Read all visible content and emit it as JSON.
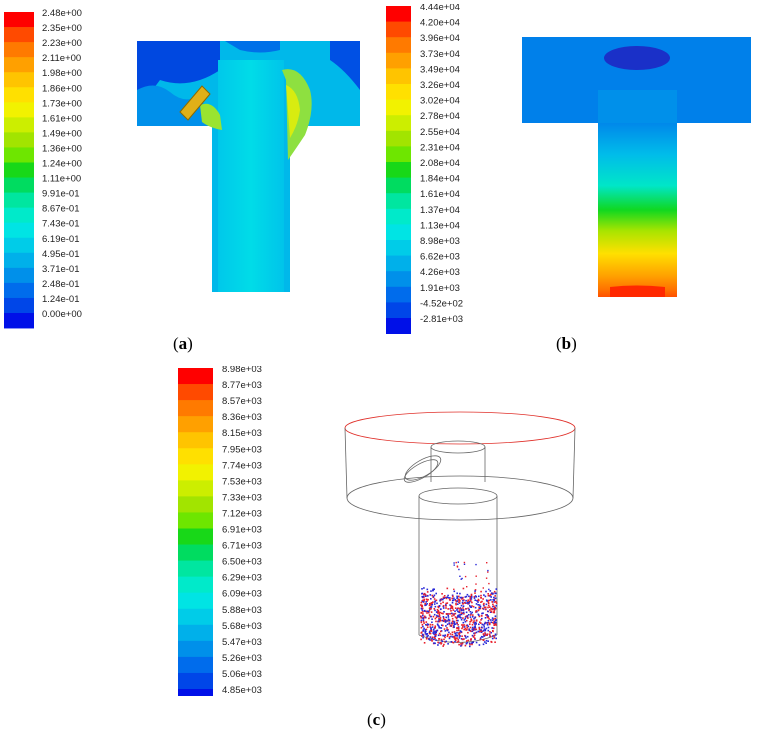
{
  "panels": [
    {
      "id": "a",
      "label": "a",
      "legend": [
        "2.48e+00",
        "2.35e+00",
        "2.23e+00",
        "2.11e+00",
        "1.98e+00",
        "1.86e+00",
        "1.73e+00",
        "1.61e+00",
        "1.49e+00",
        "1.36e+00",
        "1.24e+00",
        "1.11e+00",
        "9.91e-01",
        "8.67e-01",
        "7.43e-01",
        "6.19e-01",
        "4.95e-01",
        "3.71e-01",
        "2.48e-01",
        "1.24e-01",
        "0.00e+00"
      ]
    },
    {
      "id": "b",
      "label": "b",
      "legend": [
        "4.44e+04",
        "4.20e+04",
        "3.96e+04",
        "3.73e+04",
        "3.49e+04",
        "3.26e+04",
        "3.02e+04",
        "2.78e+04",
        "2.55e+04",
        "2.31e+04",
        "2.08e+04",
        "1.84e+04",
        "1.61e+04",
        "1.37e+04",
        "1.13e+04",
        "8.98e+03",
        "6.62e+03",
        "4.26e+03",
        "1.91e+03",
        "-4.52e+02",
        "-2.81e+03"
      ]
    },
    {
      "id": "c",
      "label": "c",
      "legend": [
        "8.98e+03",
        "8.77e+03",
        "8.57e+03",
        "8.36e+03",
        "8.15e+03",
        "7.95e+03",
        "7.74e+03",
        "7.53e+03",
        "7.33e+03",
        "7.12e+03",
        "6.91e+03",
        "6.71e+03",
        "6.50e+03",
        "6.29e+03",
        "6.09e+03",
        "5.88e+03",
        "5.68e+03",
        "5.47e+03",
        "5.26e+03",
        "5.06e+03",
        "4.85e+03"
      ]
    }
  ],
  "colormap": [
    "#ff0000",
    "#ff4a00",
    "#ff7a00",
    "#ffa000",
    "#ffc400",
    "#ffe000",
    "#f2f200",
    "#ccee00",
    "#a2e400",
    "#6ee600",
    "#18d818",
    "#00dc60",
    "#00e6a0",
    "#00eaca",
    "#00e4e4",
    "#00cce8",
    "#00b0ea",
    "#0090ea",
    "#006cec",
    "#0046e8",
    "#0010e8"
  ],
  "colors": {
    "frame": "#555555",
    "rim": "#e0302a",
    "particle_red": "#e8202c",
    "particle_blue": "#2828d8"
  }
}
